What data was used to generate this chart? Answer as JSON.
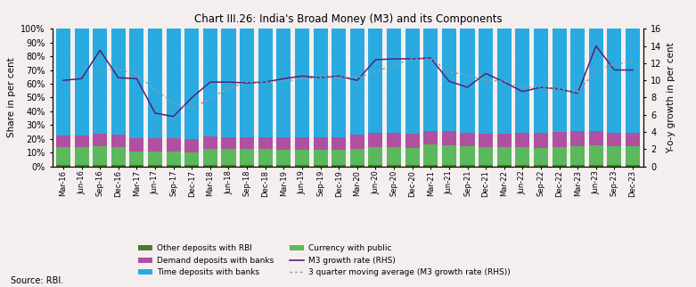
{
  "title": "Chart III.26: India's Broad Money (M3) and its Components",
  "ylabel_left": "Share in per cent",
  "ylabel_right": "Y-o-y growth in per cent",
  "source": "Source: RBI.",
  "background_color": "#f5eeee",
  "categories": [
    "Mar-16",
    "Jun-16",
    "Sep-16",
    "Dec-16",
    "Mar-17",
    "Jun-17",
    "Sep-17",
    "Dec-17",
    "Mar-18",
    "Jun-18",
    "Sep-18",
    "Dec-18",
    "Mar-19",
    "Jun-19",
    "Sep-19",
    "Dec-19",
    "Mar-20",
    "Jun-20",
    "Sep-20",
    "Dec-20",
    "Mar-21",
    "Jun-21",
    "Sep-21",
    "Dec-21",
    "Mar-22",
    "Jun-22",
    "Sep-22",
    "Dec-22",
    "Mar-23",
    "Jun-23",
    "Sep-23",
    "Dec-23"
  ],
  "other_rbi": [
    1.0,
    1.0,
    1.0,
    1.0,
    1.0,
    1.0,
    1.0,
    1.0,
    1.0,
    1.0,
    1.0,
    1.0,
    1.0,
    1.0,
    1.0,
    1.0,
    1.0,
    1.0,
    1.0,
    1.0,
    1.0,
    1.0,
    1.0,
    1.0,
    1.0,
    1.0,
    1.0,
    1.0,
    1.0,
    1.0,
    1.0,
    1.0
  ],
  "currency_public": [
    13.0,
    13.0,
    13.5,
    13.0,
    10.0,
    10.0,
    10.0,
    9.5,
    12.0,
    11.5,
    11.5,
    11.5,
    11.0,
    11.0,
    11.0,
    11.0,
    12.0,
    13.0,
    13.0,
    12.5,
    15.0,
    14.5,
    13.5,
    13.0,
    13.0,
    13.0,
    12.5,
    13.0,
    14.0,
    14.5,
    14.0,
    13.5
  ],
  "demand_deposits": [
    8.5,
    8.5,
    9.0,
    9.0,
    9.5,
    9.5,
    9.5,
    9.5,
    9.0,
    9.0,
    9.0,
    9.0,
    9.5,
    9.5,
    9.5,
    9.5,
    10.0,
    10.5,
    10.5,
    10.5,
    10.0,
    10.0,
    10.0,
    10.0,
    10.0,
    10.5,
    11.0,
    11.0,
    10.5,
    10.0,
    9.5,
    10.0
  ],
  "time_deposits": [
    77.5,
    77.5,
    76.5,
    77.0,
    79.5,
    79.5,
    79.5,
    80.0,
    78.0,
    78.5,
    78.5,
    78.5,
    78.5,
    78.5,
    78.5,
    78.5,
    77.0,
    75.5,
    75.5,
    76.0,
    74.0,
    74.5,
    75.5,
    76.0,
    76.0,
    75.5,
    75.5,
    75.0,
    74.5,
    74.5,
    75.5,
    75.5
  ],
  "m3_growth": [
    10.0,
    10.2,
    13.5,
    10.3,
    10.2,
    6.2,
    5.8,
    8.0,
    9.8,
    9.8,
    9.7,
    9.8,
    10.2,
    10.5,
    10.3,
    10.5,
    10.0,
    12.4,
    12.5,
    12.5,
    12.6,
    9.9,
    9.2,
    10.8,
    9.8,
    8.7,
    9.2,
    9.0,
    8.5,
    14.0,
    11.2,
    11.2
  ],
  "m3_ma": [
    null,
    null,
    11.2,
    11.3,
    10.7,
    8.9,
    7.4,
    6.7,
    7.9,
    9.1,
    9.8,
    9.8,
    9.9,
    10.2,
    10.3,
    10.4,
    10.3,
    11.0,
    11.8,
    12.5,
    12.5,
    11.0,
    10.6,
    10.0,
    9.9,
    9.2,
    9.2,
    9.0,
    8.6,
    11.2,
    11.9,
    12.1
  ],
  "color_other_rbi": "#4a7c2f",
  "color_currency": "#5cb85c",
  "color_demand": "#b050a0",
  "color_time": "#29abe2",
  "color_m3_line": "#5a2070",
  "color_m3_ma": "#999999",
  "ylim_left": [
    0,
    100
  ],
  "ylim_right": [
    0,
    16
  ],
  "yticks_left": [
    0,
    10,
    20,
    30,
    40,
    50,
    60,
    70,
    80,
    90,
    100
  ],
  "yticks_right": [
    0,
    2,
    4,
    6,
    8,
    10,
    12,
    14,
    16
  ]
}
